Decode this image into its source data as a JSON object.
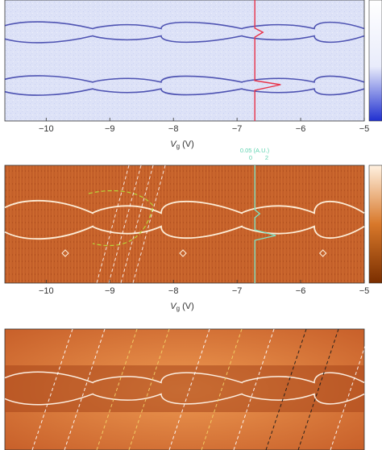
{
  "panels": [
    {
      "id": "a",
      "type": "heatmap",
      "colormap": [
        "#2b3ed8",
        "#eef0fb",
        "#ffffff"
      ],
      "background": "#dfe3f7",
      "feature_color": "#2b2fa0",
      "xlim": [
        -10.65,
        -5
      ],
      "xticks": [
        -10,
        -9,
        -8,
        -7,
        -6,
        -5
      ],
      "xtick_labels": [
        "−10",
        "−9",
        "−8",
        "−7",
        "−6",
        "−5"
      ],
      "xlabel_main": "V",
      "xlabel_sub": "g",
      "xlabel_unit": " (V)",
      "linecut": {
        "x": -6.72,
        "color": "#e8334a"
      }
    },
    {
      "id": "b",
      "type": "heatmap",
      "colormap": [
        "#7a2e00",
        "#d8782a",
        "#fff1e0"
      ],
      "background": "#c8642a",
      "feature_color": "#fff3df",
      "xlim": [
        -10.65,
        -5
      ],
      "xticks": [
        -10,
        -9,
        -8,
        -7,
        -6,
        -5
      ],
      "xtick_labels": [
        "−10",
        "−9",
        "−8",
        "−7",
        "−6",
        "−5"
      ],
      "xlabel_main": "V",
      "xlabel_sub": "g",
      "xlabel_unit": " (V)",
      "linecut": {
        "x": -6.72,
        "color": "#7fe0c0"
      },
      "annotation": {
        "text": "0.05 (A.U.)",
        "axis_ticks": [
          "0",
          "2"
        ]
      },
      "markers": [
        {
          "x": -9.7,
          "shape": "diamond"
        },
        {
          "x": -7.85,
          "shape": "diamond"
        },
        {
          "x": -5.65,
          "shape": "diamond"
        }
      ]
    },
    {
      "id": "c",
      "type": "heatmap",
      "colormap": [
        "#8a3a00",
        "#e08a3a",
        "#ffffff"
      ],
      "background": "#d9773a",
      "feature_color": "#fff6ea",
      "xlim": [
        -10.65,
        -5
      ]
    }
  ]
}
